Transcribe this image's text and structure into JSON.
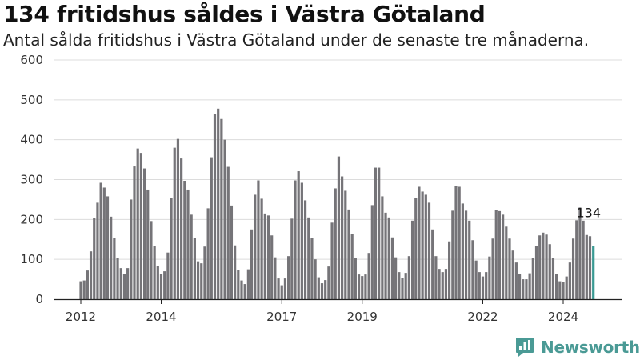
{
  "header": {
    "title": "134 fritidshus såldes i Västra Götaland",
    "subtitle": "Antal sålda fritidshus i Västra Götaland under de senaste tre månaderna."
  },
  "brand": {
    "name": "Newsworthy",
    "icon": "newsworthy-logo-icon",
    "color": "#4a9a95"
  },
  "chart_data": {
    "type": "bar",
    "title": "134 fritidshus såldes i Västra Götaland",
    "subtitle": "Antal sålda fritidshus i Västra Götaland under de senaste tre månaderna.",
    "xlabel": "",
    "ylabel": "",
    "ylim": [
      0,
      600
    ],
    "yticks": [
      0,
      100,
      200,
      300,
      400,
      500,
      600
    ],
    "grid": true,
    "legend": "none",
    "bar_color": "#757478",
    "highlight_color": "#3a9a93",
    "x_ticks": [
      {
        "label": "2012",
        "index": 0
      },
      {
        "label": "2014",
        "index": 24
      },
      {
        "label": "2017",
        "index": 60
      },
      {
        "label": "2019",
        "index": 84
      },
      {
        "label": "2022",
        "index": 120
      },
      {
        "label": "2024",
        "index": 144
      }
    ],
    "annotation": {
      "text": "134",
      "index": 152
    },
    "values": [
      45,
      47,
      72,
      120,
      203,
      242,
      292,
      280,
      258,
      207,
      153,
      104,
      78,
      63,
      78,
      250,
      333,
      378,
      367,
      328,
      275,
      196,
      133,
      84,
      63,
      70,
      117,
      253,
      380,
      402,
      353,
      297,
      275,
      212,
      153,
      95,
      90,
      132,
      228,
      356,
      465,
      478,
      452,
      400,
      332,
      235,
      135,
      74,
      47,
      38,
      75,
      175,
      262,
      298,
      252,
      215,
      210,
      160,
      105,
      52,
      35,
      52,
      108,
      202,
      298,
      321,
      292,
      248,
      205,
      153,
      100,
      55,
      40,
      48,
      82,
      192,
      278,
      358,
      308,
      272,
      225,
      164,
      104,
      62,
      58,
      62,
      116,
      236,
      330,
      330,
      258,
      217,
      205,
      155,
      105,
      68,
      53,
      66,
      108,
      197,
      253,
      282,
      270,
      262,
      242,
      175,
      108,
      76,
      68,
      76,
      145,
      222,
      284,
      282,
      240,
      222,
      197,
      148,
      97,
      68,
      57,
      68,
      107,
      152,
      223,
      221,
      212,
      182,
      152,
      122,
      92,
      64,
      50,
      50,
      65,
      104,
      133,
      160,
      167,
      162,
      138,
      104,
      64,
      45,
      43,
      57,
      92,
      152,
      198,
      230,
      197,
      161,
      158,
      134
    ]
  }
}
